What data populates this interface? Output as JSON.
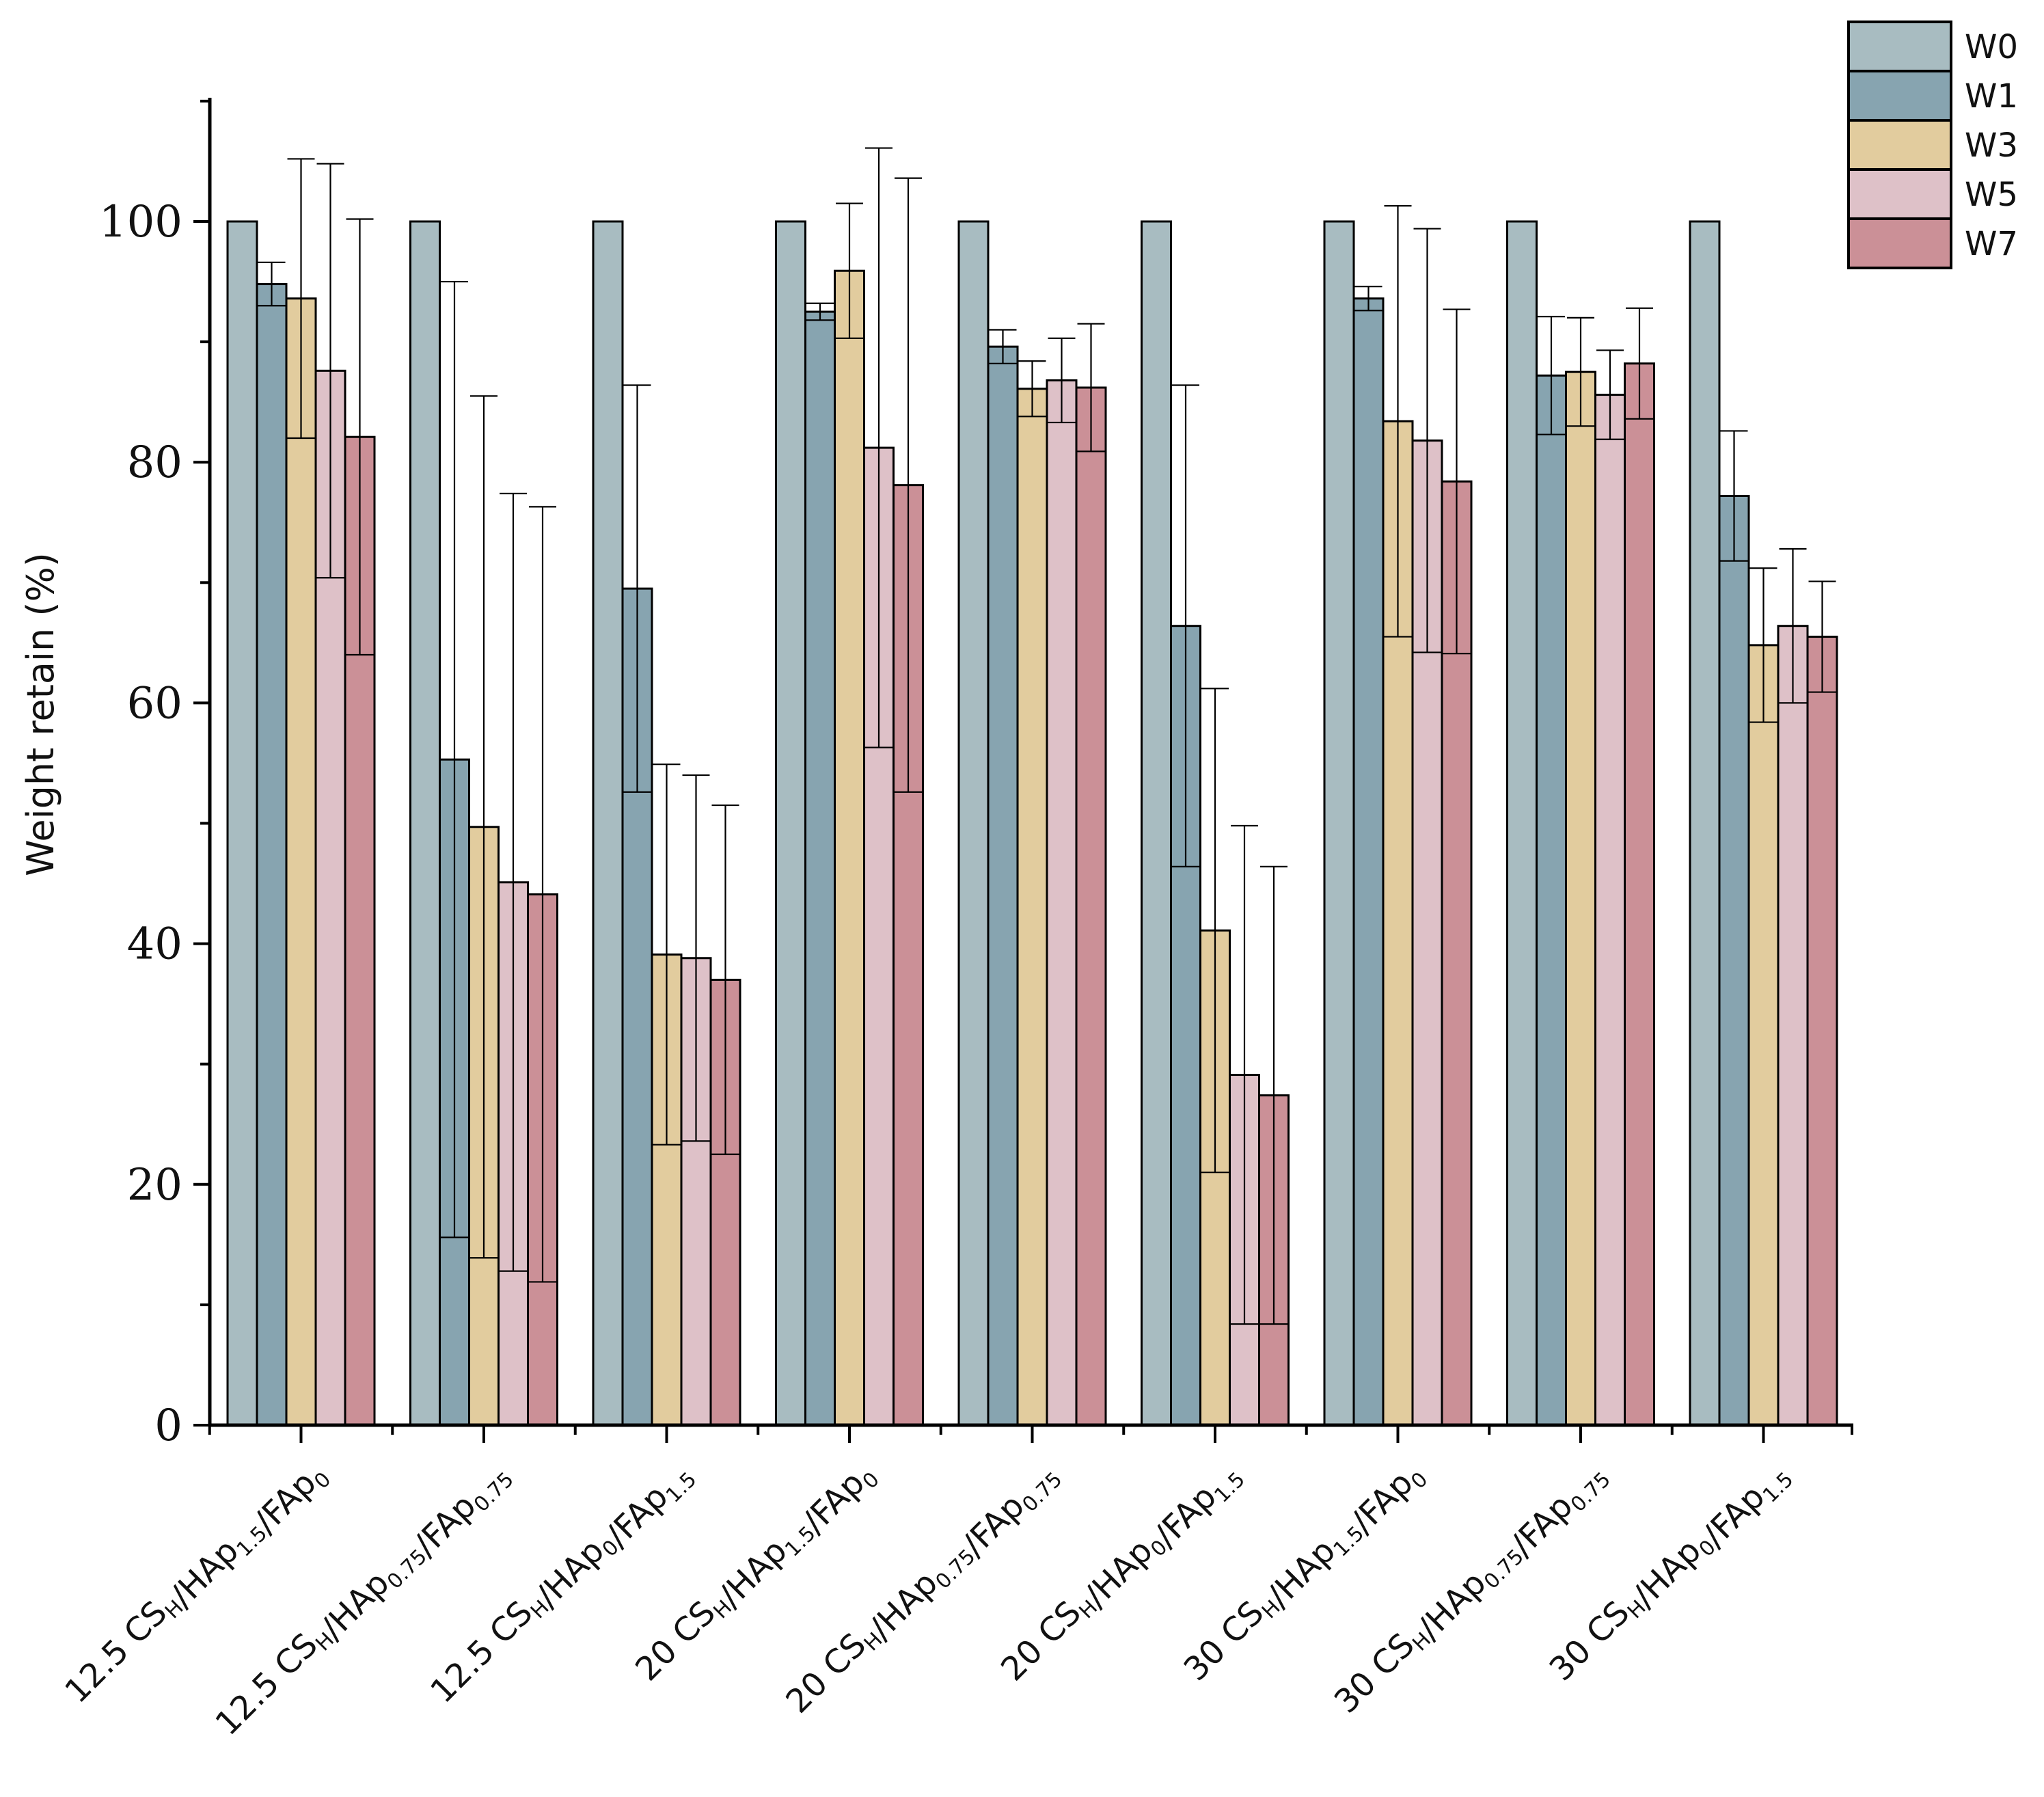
{
  "chart_data": {
    "type": "bar",
    "title": "",
    "xlabel": "",
    "ylabel": "Weight retain (%)",
    "ylim": [
      0,
      110
    ],
    "yticks": [
      "0",
      "20",
      "40",
      "60",
      "80",
      "100"
    ],
    "grid": false,
    "legend_position": "top-right",
    "categories": [
      [
        {
          "t": "12.5 CS"
        },
        {
          "t": "H",
          "sub": true
        },
        {
          "t": "/HAp"
        },
        {
          "t": "1.5",
          "sub": true
        },
        {
          "t": "/FAp"
        },
        {
          "t": "0",
          "sub": true
        }
      ],
      [
        {
          "t": "12.5 CS"
        },
        {
          "t": "H",
          "sub": true
        },
        {
          "t": "/HAp"
        },
        {
          "t": "0.75",
          "sub": true
        },
        {
          "t": "/FAp"
        },
        {
          "t": "0.75",
          "sub": true
        }
      ],
      [
        {
          "t": "12.5 CS"
        },
        {
          "t": "H",
          "sub": true
        },
        {
          "t": "/HAp"
        },
        {
          "t": "0",
          "sub": true
        },
        {
          "t": "/FAp"
        },
        {
          "t": "1.5",
          "sub": true
        }
      ],
      [
        {
          "t": "20 CS"
        },
        {
          "t": "H",
          "sub": true
        },
        {
          "t": "/HAp"
        },
        {
          "t": "1.5",
          "sub": true
        },
        {
          "t": "/FAp"
        },
        {
          "t": "0",
          "sub": true
        }
      ],
      [
        {
          "t": "20 CS"
        },
        {
          "t": "H",
          "sub": true
        },
        {
          "t": "/HAp"
        },
        {
          "t": "0.75",
          "sub": true
        },
        {
          "t": "/FAp"
        },
        {
          "t": "0.75",
          "sub": true
        }
      ],
      [
        {
          "t": "20 CS"
        },
        {
          "t": "H",
          "sub": true
        },
        {
          "t": "/HAp"
        },
        {
          "t": "0",
          "sub": true
        },
        {
          "t": "/FAp"
        },
        {
          "t": "1.5",
          "sub": true
        }
      ],
      [
        {
          "t": "30 CS"
        },
        {
          "t": "H",
          "sub": true
        },
        {
          "t": "/HAp"
        },
        {
          "t": "1.5",
          "sub": true
        },
        {
          "t": "/FAp"
        },
        {
          "t": "0",
          "sub": true
        }
      ],
      [
        {
          "t": "30 CS"
        },
        {
          "t": "H",
          "sub": true
        },
        {
          "t": "/HAp"
        },
        {
          "t": "0.75",
          "sub": true
        },
        {
          "t": "/FAp"
        },
        {
          "t": "0.75",
          "sub": true
        }
      ],
      [
        {
          "t": "30 CS"
        },
        {
          "t": "H",
          "sub": true
        },
        {
          "t": "/HAp"
        },
        {
          "t": "0",
          "sub": true
        },
        {
          "t": "/FAp"
        },
        {
          "t": "1.5",
          "sub": true
        }
      ]
    ],
    "series": [
      {
        "name": "W0",
        "color": "#a8bcc1",
        "values": [
          100,
          100,
          100,
          100,
          100,
          100,
          100,
          100,
          100
        ],
        "errors": [
          0,
          0,
          0,
          0,
          0,
          0,
          0,
          0,
          0
        ]
      },
      {
        "name": "W1",
        "color": "#87a4b0",
        "values": [
          94.8,
          55.3,
          69.5,
          92.5,
          89.6,
          66.4,
          93.6,
          87.2,
          77.2
        ],
        "errors": [
          1.8,
          39.7,
          16.9,
          0.7,
          1.4,
          20.0,
          1.0,
          4.9,
          5.4
        ]
      },
      {
        "name": "W3",
        "color": "#e2cc9e",
        "values": [
          93.6,
          49.7,
          39.1,
          95.9,
          86.1,
          41.1,
          83.4,
          87.5,
          64.8
        ],
        "errors": [
          11.6,
          35.8,
          15.8,
          5.6,
          2.3,
          20.1,
          17.9,
          4.5,
          6.4
        ]
      },
      {
        "name": "W5",
        "color": "#dec1c8",
        "values": [
          87.6,
          45.1,
          38.8,
          81.2,
          86.8,
          29.1,
          81.8,
          85.6,
          66.4
        ],
        "errors": [
          17.2,
          32.3,
          15.2,
          24.9,
          3.5,
          20.7,
          17.6,
          3.7,
          6.4
        ]
      },
      {
        "name": "W7",
        "color": "#cb9097",
        "values": [
          82.1,
          44.1,
          37.0,
          78.1,
          86.2,
          27.4,
          78.4,
          88.2,
          65.5
        ],
        "errors": [
          18.1,
          32.2,
          14.5,
          25.5,
          5.3,
          19.0,
          14.3,
          4.6,
          4.6
        ]
      }
    ]
  }
}
